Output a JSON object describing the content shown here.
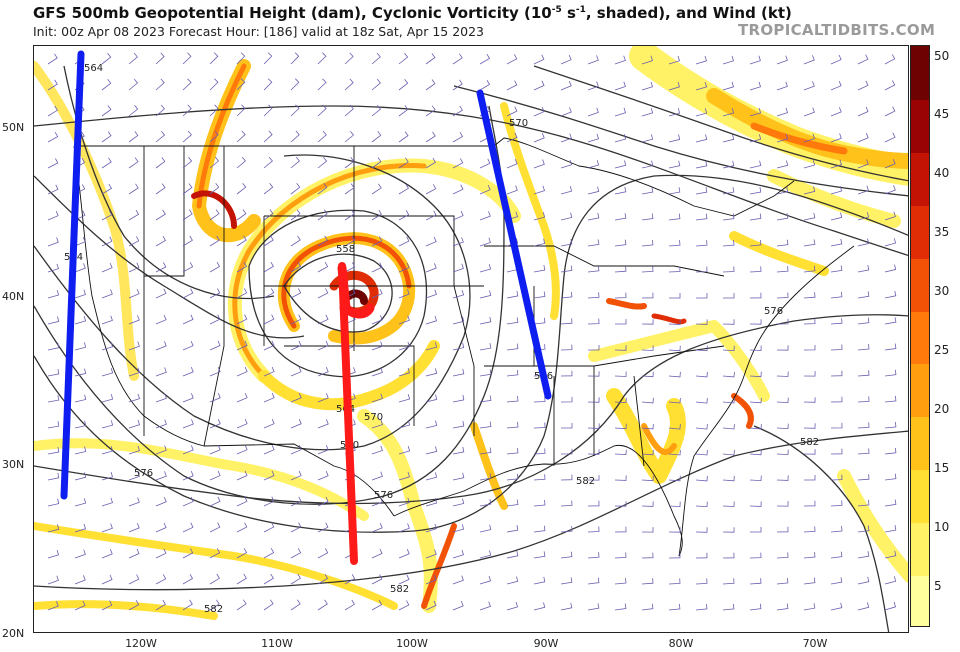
{
  "header": {
    "title_pre": "GFS 500mb Geopotential Height (dam), Cyclonic Vorticity (10",
    "title_sup": "-5",
    "title_mid": " s",
    "title_sup2": "-1",
    "title_post": ", shaded), and Wind (kt)",
    "init_line": "Init: 00z Apr 08 2023   Forecast Hour: [186]   valid at 18z Sat, Apr 15 2023",
    "brand": "TROPICALTIDBITS.COM"
  },
  "axes": {
    "lat_labels": [
      "50N",
      "40N",
      "30N",
      "20N"
    ],
    "lon_labels": [
      "120W",
      "110W",
      "100W",
      "90W",
      "80W",
      "70W"
    ]
  },
  "colorbar": {
    "labels": [
      "50",
      "45",
      "40",
      "35",
      "30",
      "25",
      "20",
      "15",
      "10",
      "5"
    ],
    "colors": [
      "#ffff9e",
      "#fff266",
      "#ffe033",
      "#ffc21a",
      "#ff9f0f",
      "#ff7a0a",
      "#f25206",
      "#e02d05",
      "#c21304",
      "#990303",
      "#6e0202"
    ]
  },
  "contours": {
    "labels": [
      "564",
      "558",
      "564",
      "570",
      "576",
      "576",
      "582",
      "582",
      "582",
      "570",
      "576",
      "564",
      "576",
      "570",
      "582"
    ]
  },
  "colors": {
    "annotation_blue": "#0f1ef0",
    "annotation_red": "#ff1a1a",
    "contour": "#333333",
    "border": "#111111",
    "barb": "#6a5fb0"
  }
}
